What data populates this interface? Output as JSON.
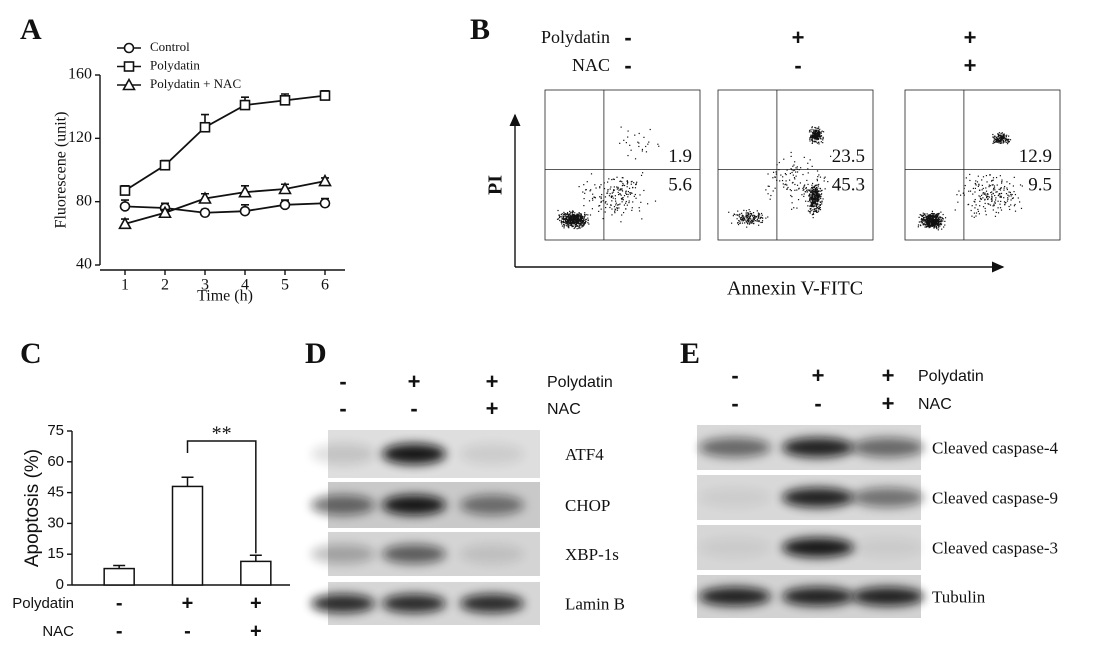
{
  "panels": {
    "a": "A",
    "b": "B",
    "c": "C",
    "d": "D",
    "e": "E"
  },
  "chart_data": [
    {
      "type": "line",
      "x_label": "Time (h)",
      "y_label": "Fluorescene (unit)",
      "x": [
        1,
        2,
        3,
        4,
        5,
        6
      ],
      "xlim": [
        0.5,
        6.5
      ],
      "xticks": [
        1,
        2,
        3,
        4,
        5,
        6
      ],
      "ylim": [
        40,
        160
      ],
      "yticks": [
        40,
        80,
        120,
        160
      ],
      "legend": "upper left",
      "series": [
        {
          "name": "Control",
          "color": "#111111",
          "marker": "circle",
          "values": [
            77,
            76,
            73,
            74,
            78,
            79
          ],
          "errors": [
            4,
            3,
            2,
            4,
            3,
            3
          ]
        },
        {
          "name": "Polydatin",
          "color": "#111111",
          "marker": "square",
          "values": [
            87,
            103,
            127,
            141,
            144,
            147
          ],
          "errors": [
            3,
            3,
            8,
            5,
            4,
            3
          ]
        },
        {
          "name": "Polydatin + NAC",
          "color": "#111111",
          "marker": "triangle",
          "values": [
            66,
            73,
            82,
            86,
            88,
            93
          ],
          "errors": [
            3,
            2,
            3,
            4,
            3,
            2
          ]
        }
      ]
    },
    {
      "type": "bar",
      "y_label": "Apoptosis (%)",
      "values": [
        8,
        48,
        11.5
      ],
      "errors": [
        1.5,
        4.5,
        3
      ],
      "color": "#ffffff",
      "ylim": [
        0,
        75
      ],
      "yticks": [
        0,
        15,
        30,
        45,
        60,
        75
      ],
      "annotation": "**",
      "condition_rows": [
        {
          "name": "Polydatin",
          "values": [
            "-",
            "+",
            "+"
          ]
        },
        {
          "name": "NAC",
          "values": [
            "-",
            "-",
            "+"
          ]
        }
      ]
    }
  ],
  "flow_cytometry": {
    "treatments": [
      {
        "name": "Polydatin",
        "values": [
          "-",
          "+",
          "+"
        ]
      },
      {
        "name": "NAC",
        "values": [
          "-",
          "-",
          "+"
        ]
      }
    ],
    "y_label": "PI",
    "x_label": "Annexin V-FITC",
    "plots": [
      {
        "upper_right": "1.9",
        "lower_right": "5.6"
      },
      {
        "upper_right": "23.5",
        "lower_right": "45.3"
      },
      {
        "upper_right": "12.9",
        "lower_right": "9.5"
      }
    ]
  },
  "western_d": {
    "treatments": [
      {
        "name": "Polydatin",
        "values": [
          "-",
          "+",
          "+"
        ]
      },
      {
        "name": "NAC",
        "values": [
          "-",
          "-",
          "+"
        ]
      }
    ],
    "rows": [
      "ATF4",
      "CHOP",
      "XBP-1s",
      "Lamin B"
    ]
  },
  "western_e": {
    "treatments": [
      {
        "name": "Polydatin",
        "values": [
          "-",
          "+",
          "+"
        ]
      },
      {
        "name": "NAC",
        "values": [
          "-",
          "-",
          "+"
        ]
      }
    ],
    "rows": [
      "Cleaved caspase-4",
      "Cleaved caspase-9",
      "Cleaved caspase-3",
      "Tubulin"
    ]
  }
}
